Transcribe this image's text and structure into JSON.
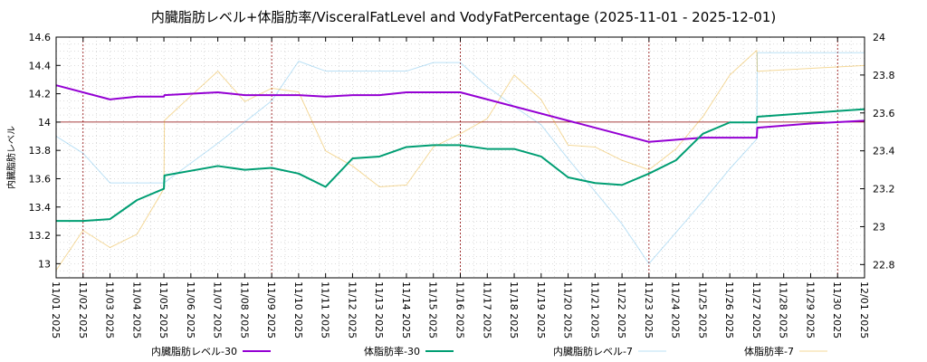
{
  "chart_data": {
    "type": "line",
    "title": "内臓脂肪レベル+体脂肪率/VisceralFatLevel and VodyFatPercentage (2025-11-01 - 2025-12-01)",
    "ylabel": "内臓脂肪レベル",
    "ylim": [
      12.9,
      14.6
    ],
    "y2lim": [
      22.73,
      24.0
    ],
    "yticks": [
      13,
      13.2,
      13.4,
      13.6,
      13.8,
      14,
      14.2,
      14.4,
      14.6
    ],
    "yticklabels": [
      "13",
      "13.2",
      "13.4",
      "13.6",
      "13.8",
      "14",
      "14.2",
      "14.4",
      "14.6"
    ],
    "y2ticks": [
      22.8,
      23,
      23.2,
      23.4,
      23.6,
      23.8,
      24
    ],
    "y2ticklabels": [
      "22.8",
      "23",
      "23.2",
      "23.4",
      "23.6",
      "23.8",
      "24"
    ],
    "xlim": [
      0,
      30
    ],
    "xticklabels": [
      "11/01 2025",
      "11/02 2025",
      "11/03 2025",
      "11/04 2025",
      "11/05 2025",
      "11/06 2025",
      "11/07 2025",
      "11/08 2025",
      "11/09 2025",
      "11/10 2025",
      "11/11 2025",
      "11/12 2025",
      "11/13 2025",
      "11/14 2025",
      "11/15 2025",
      "11/16 2025",
      "11/17 2025",
      "11/18 2025",
      "11/19 2025",
      "11/20 2025",
      "11/21 2025",
      "11/22 2025",
      "11/23 2025",
      "11/24 2025",
      "11/25 2025",
      "11/26 2025",
      "11/27 2025",
      "11/28 2025",
      "11/29 2025",
      "11/30 2025",
      "12/01 2025"
    ],
    "vlines_days": [
      1,
      8,
      15,
      22,
      29
    ],
    "hline_y": 14.0,
    "grid": true,
    "legend_position": "bottom",
    "series": [
      {
        "name": "内臓脂肪レベル-30",
        "axis": "y1",
        "color": "#9400d3",
        "width": 2,
        "points": [
          [
            0,
            14.26
          ],
          [
            2,
            14.16
          ],
          [
            3,
            14.18
          ],
          [
            4,
            14.18
          ],
          [
            4.02,
            14.19
          ],
          [
            6,
            14.21
          ],
          [
            7,
            14.19
          ],
          [
            9,
            14.19
          ],
          [
            10,
            14.18
          ],
          [
            11,
            14.19
          ],
          [
            12,
            14.19
          ],
          [
            13,
            14.21
          ],
          [
            15,
            14.21
          ],
          [
            22,
            13.86
          ],
          [
            24,
            13.89
          ],
          [
            26,
            13.89
          ],
          [
            26.02,
            13.96
          ],
          [
            28,
            13.99
          ],
          [
            30,
            14.01
          ]
        ]
      },
      {
        "name": "体脂肪率-30",
        "axis": "y2",
        "color": "#009e73",
        "width": 2,
        "points": [
          [
            0,
            23.03
          ],
          [
            1,
            23.03
          ],
          [
            2,
            23.04
          ],
          [
            3,
            23.14
          ],
          [
            4,
            23.2
          ],
          [
            4.02,
            23.27
          ],
          [
            6,
            23.32
          ],
          [
            7,
            23.3
          ],
          [
            8,
            23.31
          ],
          [
            9,
            23.28
          ],
          [
            10,
            23.21
          ],
          [
            11,
            23.36
          ],
          [
            12,
            23.37
          ],
          [
            13,
            23.42
          ],
          [
            14,
            23.43
          ],
          [
            15,
            23.43
          ],
          [
            16,
            23.41
          ],
          [
            17,
            23.41
          ],
          [
            18,
            23.37
          ],
          [
            19,
            23.26
          ],
          [
            20,
            23.23
          ],
          [
            21,
            23.22
          ],
          [
            22,
            23.28
          ],
          [
            23,
            23.35
          ],
          [
            24,
            23.49
          ],
          [
            25,
            23.55
          ],
          [
            26,
            23.55
          ],
          [
            26.02,
            23.58
          ],
          [
            28,
            23.6
          ],
          [
            30,
            23.62
          ]
        ]
      },
      {
        "name": "内臓脂肪レベル-7",
        "axis": "y1",
        "color": "#56b4e9",
        "width": 1,
        "opacity": 0.4,
        "points": [
          [
            0,
            13.9
          ],
          [
            1,
            13.78
          ],
          [
            2,
            13.57
          ],
          [
            3,
            13.57
          ],
          [
            4,
            13.57
          ],
          [
            5,
            13.71
          ],
          [
            6,
            13.85
          ],
          [
            7,
            14.0
          ],
          [
            8,
            14.15
          ],
          [
            9,
            14.43
          ],
          [
            10,
            14.36
          ],
          [
            13,
            14.36
          ],
          [
            14,
            14.42
          ],
          [
            15,
            14.42
          ],
          [
            16,
            14.25
          ],
          [
            17,
            14.11
          ],
          [
            18,
            13.98
          ],
          [
            19,
            13.74
          ],
          [
            20,
            13.51
          ],
          [
            21,
            13.28
          ],
          [
            22,
            13.0
          ],
          [
            23,
            13.22
          ],
          [
            24,
            13.44
          ],
          [
            25,
            13.67
          ],
          [
            26,
            13.88
          ],
          [
            26.02,
            14.49
          ],
          [
            30,
            14.49
          ]
        ]
      },
      {
        "name": "体脂肪率-7",
        "axis": "y2",
        "color": "#e69f00",
        "width": 1,
        "opacity": 0.4,
        "points": [
          [
            0,
            22.77
          ],
          [
            1,
            22.98
          ],
          [
            2,
            22.89
          ],
          [
            3,
            22.96
          ],
          [
            4,
            23.2
          ],
          [
            4.02,
            23.56
          ],
          [
            5,
            23.69
          ],
          [
            6,
            23.82
          ],
          [
            7,
            23.66
          ],
          [
            8,
            23.73
          ],
          [
            9,
            23.71
          ],
          [
            10,
            23.4
          ],
          [
            11,
            23.32
          ],
          [
            12,
            23.21
          ],
          [
            13,
            23.22
          ],
          [
            14,
            23.42
          ],
          [
            15,
            23.49
          ],
          [
            16,
            23.57
          ],
          [
            17,
            23.8
          ],
          [
            18,
            23.67
          ],
          [
            19,
            23.43
          ],
          [
            20,
            23.42
          ],
          [
            21,
            23.35
          ],
          [
            22,
            23.3
          ],
          [
            23,
            23.41
          ],
          [
            24,
            23.58
          ],
          [
            25,
            23.8
          ],
          [
            26,
            23.93
          ],
          [
            26.02,
            23.82
          ],
          [
            30,
            23.85
          ]
        ]
      }
    ]
  }
}
